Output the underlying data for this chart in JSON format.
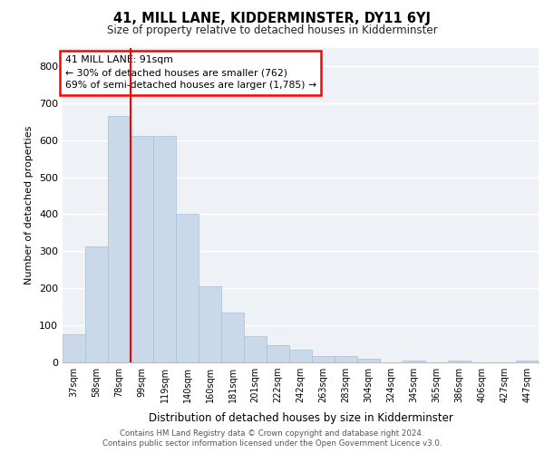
{
  "title": "41, MILL LANE, KIDDERMINSTER, DY11 6YJ",
  "subtitle": "Size of property relative to detached houses in Kidderminster",
  "xlabel": "Distribution of detached houses by size in Kidderminster",
  "ylabel": "Number of detached properties",
  "categories": [
    "37sqm",
    "58sqm",
    "78sqm",
    "99sqm",
    "119sqm",
    "140sqm",
    "160sqm",
    "181sqm",
    "201sqm",
    "222sqm",
    "242sqm",
    "263sqm",
    "283sqm",
    "304sqm",
    "324sqm",
    "345sqm",
    "365sqm",
    "386sqm",
    "406sqm",
    "427sqm",
    "447sqm"
  ],
  "values": [
    75,
    312,
    665,
    612,
    612,
    400,
    205,
    135,
    70,
    46,
    35,
    18,
    18,
    11,
    0,
    5,
    0,
    5,
    0,
    0,
    5
  ],
  "bar_color": "#c9d9ea",
  "bar_edge_color": "#a8bfd4",
  "red_line_x": 2.5,
  "annotation_line1": "41 MILL LANE: 91sqm",
  "annotation_line2": "← 30% of detached houses are smaller (762)",
  "annotation_line3": "69% of semi-detached houses are larger (1,785) →",
  "ylim": [
    0,
    850
  ],
  "yticks": [
    0,
    100,
    200,
    300,
    400,
    500,
    600,
    700,
    800
  ],
  "background_color": "#eef2f7",
  "grid_color": "#ffffff",
  "footer_line1": "Contains HM Land Registry data © Crown copyright and database right 2024.",
  "footer_line2": "Contains public sector information licensed under the Open Government Licence v3.0."
}
